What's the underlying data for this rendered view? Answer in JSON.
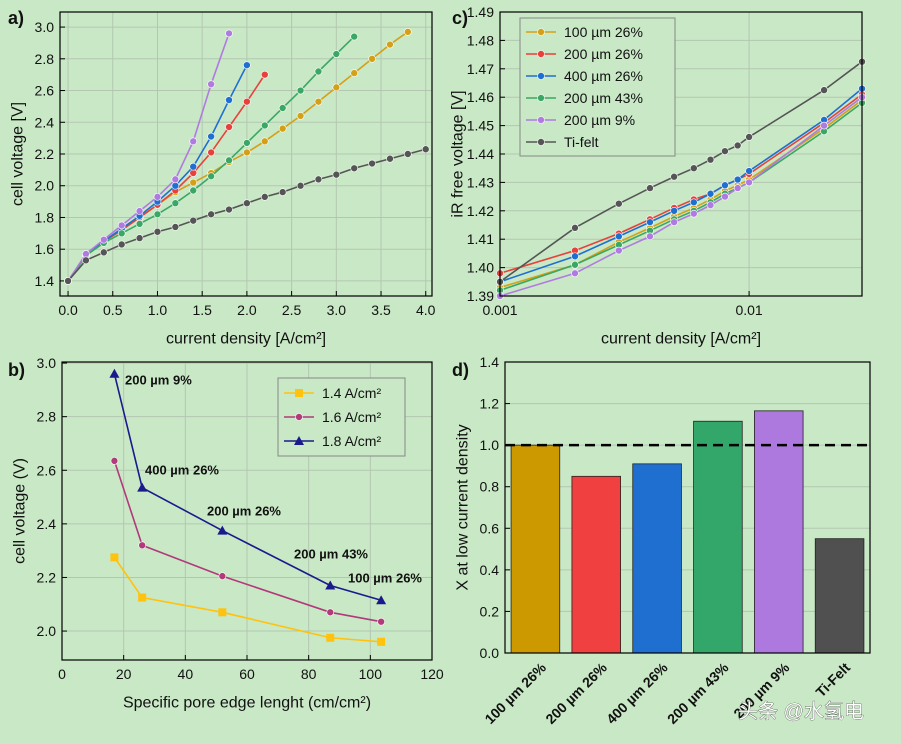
{
  "chart_data": [
    {
      "type": "line",
      "panel_label": "a)",
      "x_label": "current density [A/cm²]",
      "y_label": "cell voltage [V]",
      "xlim": [
        -0.09,
        4.07
      ],
      "ylim": [
        1.305,
        3.095
      ],
      "grid": true,
      "xticks": [
        {
          "value": 0,
          "label": "0.0"
        },
        0.5,
        {
          "value": 1,
          "label": "1.0"
        },
        1.5,
        {
          "value": 2,
          "label": "2.0"
        },
        2.5,
        {
          "value": 3,
          "label": "3.0"
        },
        3.5,
        {
          "value": 4,
          "label": "4.0"
        }
      ],
      "yticks": [
        1.4,
        1.6,
        1.8,
        {
          "value": 2,
          "label": "2.0"
        },
        2.2,
        2.4,
        2.6,
        2.8,
        {
          "value": 3,
          "label": "3.0"
        }
      ],
      "series": [
        {
          "color": "#d4a017",
          "x": [
            0,
            0.2,
            0.4,
            0.6,
            0.8,
            1.0,
            1.2,
            1.4,
            1.6,
            1.8,
            2.0,
            2.2,
            2.4,
            2.6,
            2.8,
            3.0,
            3.2,
            3.4,
            3.6,
            3.8
          ],
          "values": [
            1.4,
            1.56,
            1.65,
            1.72,
            1.8,
            1.88,
            1.96,
            2.02,
            2.08,
            2.15,
            2.21,
            2.28,
            2.36,
            2.44,
            2.53,
            2.62,
            2.71,
            2.8,
            2.89,
            2.97
          ]
        },
        {
          "color": "#e8413c",
          "x": [
            0,
            0.2,
            0.4,
            0.6,
            0.8,
            1.0,
            1.2,
            1.4,
            1.6,
            1.8,
            2.0,
            2.2
          ],
          "values": [
            1.4,
            1.56,
            1.65,
            1.72,
            1.8,
            1.88,
            1.97,
            2.08,
            2.21,
            2.37,
            2.53,
            2.7
          ]
        },
        {
          "color": "#1f6fd1",
          "x": [
            0,
            0.2,
            0.4,
            0.6,
            0.8,
            1.0,
            1.2,
            1.4,
            1.6,
            1.8,
            2.0
          ],
          "values": [
            1.4,
            1.56,
            1.65,
            1.73,
            1.81,
            1.9,
            2.0,
            2.12,
            2.31,
            2.54,
            2.76
          ]
        },
        {
          "color": "#3aa864",
          "x": [
            0,
            0.2,
            0.4,
            0.6,
            0.8,
            1.0,
            1.2,
            1.4,
            1.6,
            1.8,
            2.0,
            2.2,
            2.4,
            2.6,
            2.8,
            3.0,
            3.2
          ],
          "values": [
            1.4,
            1.56,
            1.64,
            1.7,
            1.76,
            1.82,
            1.89,
            1.97,
            2.06,
            2.16,
            2.27,
            2.38,
            2.49,
            2.6,
            2.72,
            2.83,
            2.94
          ]
        },
        {
          "color": "#b07be0",
          "x": [
            0,
            0.2,
            0.4,
            0.6,
            0.8,
            1.0,
            1.2,
            1.4,
            1.6,
            1.8
          ],
          "values": [
            1.4,
            1.57,
            1.66,
            1.75,
            1.84,
            1.93,
            2.04,
            2.28,
            2.64,
            2.96
          ]
        },
        {
          "color": "#555555",
          "x": [
            0,
            0.2,
            0.4,
            0.6,
            0.8,
            1.0,
            1.2,
            1.4,
            1.6,
            1.8,
            2.0,
            2.2,
            2.4,
            2.6,
            2.8,
            3.0,
            3.2,
            3.4,
            3.6,
            3.8,
            4.0
          ],
          "values": [
            1.4,
            1.53,
            1.58,
            1.63,
            1.67,
            1.71,
            1.74,
            1.78,
            1.82,
            1.85,
            1.89,
            1.93,
            1.96,
            2.0,
            2.04,
            2.07,
            2.11,
            2.14,
            2.17,
            2.2,
            2.23
          ]
        }
      ]
    },
    {
      "type": "line",
      "panel_label": "b)",
      "x_label": "Specific pore edge lenght (cm/cm²)",
      "y_label": "cell voltage (V)",
      "xlim": [
        0,
        120
      ],
      "ylim": [
        1.892,
        3.004
      ],
      "grid": true,
      "legend": "upper right",
      "xticks": [
        0,
        20,
        40,
        60,
        80,
        100,
        120
      ],
      "yticks": [
        {
          "value": 2,
          "label": "2.0"
        },
        2.2,
        2.4,
        2.6,
        2.8,
        {
          "value": 3,
          "label": "3.0"
        }
      ],
      "x": [
        17,
        26,
        52,
        87,
        103.5
      ],
      "series": [
        {
          "name": "1.4 A/cm²",
          "color": "#ffc20e",
          "marker": "square",
          "values": [
            2.275,
            2.125,
            2.07,
            1.975,
            1.96
          ]
        },
        {
          "name": "1.6 A/cm²",
          "color": "#b03a7a",
          "marker": "circle",
          "values": [
            2.635,
            2.32,
            2.205,
            2.07,
            2.035
          ]
        },
        {
          "name": "1.8 A/cm²",
          "color": "#1a1a8c",
          "marker": "triangle",
          "values": [
            2.96,
            2.535,
            2.375,
            2.17,
            2.115
          ]
        }
      ],
      "annotations": [
        {
          "text": "200 µm 9%",
          "color": "#b07be0"
        },
        {
          "text": "400 µm 26%",
          "color": "#1f6fd1"
        },
        {
          "text": "200 µm 26%",
          "color": "#e8413c"
        },
        {
          "text": "200 µm 43%",
          "color": "#3aa864"
        },
        {
          "text": "100 µm 26%",
          "color": "#d4a017"
        }
      ]
    },
    {
      "type": "line",
      "panel_label": "c)",
      "x_label": "current density [A/cm²]",
      "y_label": "iR free voltage [V]",
      "xscale": "log",
      "xlim": [
        0.001,
        0.0284
      ],
      "ylim": [
        1.39,
        1.49
      ],
      "grid": true,
      "legend": "upper left",
      "xticks": [
        0.001,
        0.01
      ],
      "yticks": [
        1.39,
        {
          "value": 1.4,
          "label": "1.40"
        },
        1.41,
        1.42,
        1.43,
        1.44,
        1.45,
        1.46,
        1.47,
        1.48,
        1.49
      ],
      "x": [
        0.001,
        0.002,
        0.003,
        0.004,
        0.005,
        0.006,
        0.007,
        0.008,
        0.009,
        0.01,
        0.02,
        0.0284
      ],
      "series": [
        {
          "name": "100 µm 26%",
          "color": "#d4a017",
          "values": [
            1.393,
            1.401,
            1.409,
            1.414,
            1.418,
            1.421,
            1.424,
            1.427,
            1.429,
            1.431,
            1.449,
            1.459
          ]
        },
        {
          "name": "200 µm 26%",
          "color": "#e8413c",
          "values": [
            1.398,
            1.406,
            1.412,
            1.417,
            1.421,
            1.424,
            1.426,
            1.429,
            1.431,
            1.433,
            1.451,
            1.461
          ]
        },
        {
          "name": "400 µm 26%",
          "color": "#1f6fd1",
          "values": [
            1.395,
            1.404,
            1.411,
            1.416,
            1.42,
            1.423,
            1.426,
            1.429,
            1.431,
            1.434,
            1.452,
            1.463
          ]
        },
        {
          "name": "200 µm 43%",
          "color": "#3aa864",
          "values": [
            1.392,
            1.401,
            1.408,
            1.413,
            1.417,
            1.42,
            1.423,
            1.426,
            1.428,
            1.43,
            1.448,
            1.458
          ]
        },
        {
          "name": "200 µm 9%",
          "color": "#b07be0",
          "values": [
            1.39,
            1.398,
            1.406,
            1.411,
            1.416,
            1.419,
            1.422,
            1.425,
            1.428,
            1.43,
            1.45,
            1.46
          ]
        },
        {
          "name": "Ti-felt",
          "color": "#555555",
          "values": [
            1.395,
            1.414,
            1.4225,
            1.428,
            1.432,
            1.435,
            1.438,
            1.441,
            1.443,
            1.446,
            1.4625,
            1.4725
          ]
        }
      ]
    },
    {
      "type": "bar",
      "panel_label": "d)",
      "y_label": "X at low current density",
      "ylim": [
        0,
        1.4
      ],
      "grid": true,
      "reference_line": 1,
      "yticks": [
        {
          "value": 0,
          "label": "0.0"
        },
        0.2,
        0.4,
        0.6,
        0.8,
        {
          "value": 1,
          "label": "1.0"
        },
        1.2,
        1.4
      ],
      "categories": [
        "100 µm 26%",
        "200 µm 26%",
        "400 µm 26%",
        "200 µm 43%",
        "200 µm 9%",
        "Ti-Felt"
      ],
      "values": [
        1.0,
        0.85,
        0.91,
        1.115,
        1.165,
        0.55
      ],
      "colors": [
        "#cc9900",
        "#f0403f",
        "#1f6fd1",
        "#33a66a",
        "#ad79df",
        "#505050"
      ]
    }
  ],
  "watermark": "头条 @水氢电"
}
